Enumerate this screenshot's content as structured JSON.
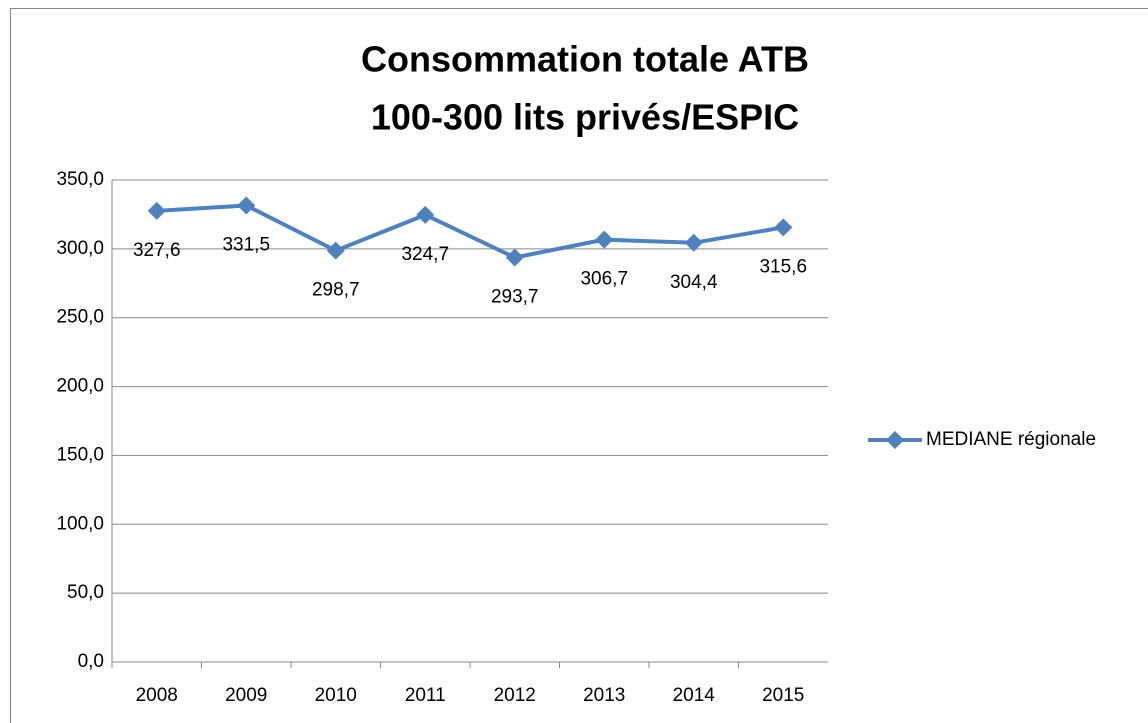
{
  "chart_data": {
    "type": "line",
    "title": [
      "Consommation totale ATB",
      "100-300 lits privés/ESPIC"
    ],
    "categories": [
      "2008",
      "2009",
      "2010",
      "2011",
      "2012",
      "2013",
      "2014",
      "2015"
    ],
    "series": [
      {
        "name": "MEDIANE régionale",
        "color": "#4f81bd",
        "values": [
          327.6,
          331.5,
          298.7,
          324.7,
          293.7,
          306.7,
          304.4,
          315.6
        ],
        "value_labels": [
          "327,6",
          "331,5",
          "298,7",
          "324,7",
          "293,7",
          "306,7",
          "304,4",
          "315,6"
        ]
      }
    ],
    "ylim": [
      0,
      350
    ],
    "yticks": [
      {
        "value": 0,
        "label": "0,0"
      },
      {
        "value": 50,
        "label": "50,0"
      },
      {
        "value": 100,
        "label": "100,0"
      },
      {
        "value": 150,
        "label": "150,0"
      },
      {
        "value": 200,
        "label": "200,0"
      },
      {
        "value": 250,
        "label": "250,0"
      },
      {
        "value": 300,
        "label": "300,0"
      },
      {
        "value": 350,
        "label": "350,0"
      }
    ],
    "grid": true,
    "legend": "right"
  }
}
